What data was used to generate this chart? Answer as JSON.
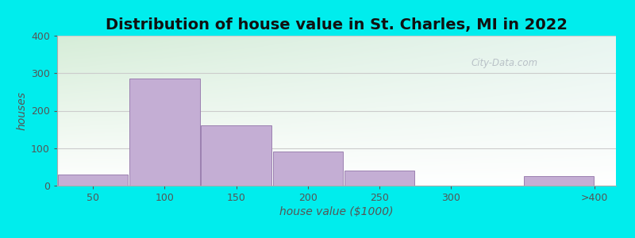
{
  "title": "Distribution of house value in St. Charles, MI in 2022",
  "xlabel": "house value ($1000)",
  "ylabel": "houses",
  "bar_heights": [
    30,
    285,
    160,
    90,
    40,
    0,
    25
  ],
  "bar_left_edges": [
    25,
    75,
    125,
    175,
    225,
    275,
    350
  ],
  "bar_widths": [
    50,
    50,
    50,
    50,
    50,
    50,
    50
  ],
  "bar_color": "#c4aed4",
  "bar_edgecolor": "#9b80b0",
  "xtick_positions": [
    50,
    100,
    150,
    200,
    250,
    300,
    400
  ],
  "xtick_labels": [
    "50",
    "100",
    "150",
    "200",
    "250",
    "300",
    ">400"
  ],
  "ytick_positions": [
    0,
    100,
    200,
    300,
    400
  ],
  "ytick_labels": [
    "0",
    "100",
    "200",
    "300",
    "400"
  ],
  "ylim": [
    0,
    400
  ],
  "xlim": [
    25,
    415
  ],
  "background_outer": "#00eded",
  "grad_top_left": "#d6edd8",
  "grad_top_right": "#e8f5f0",
  "grad_bottom": "#ffffff",
  "title_fontsize": 14,
  "axis_label_fontsize": 10,
  "tick_fontsize": 9,
  "tick_color": "#555555",
  "label_color": "#555555",
  "watermark_text": "City-Data.com",
  "grid_color": "#cccccc",
  "spine_color": "#aaaaaa"
}
